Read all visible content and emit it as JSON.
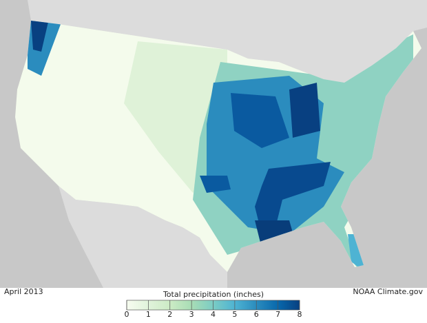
{
  "map": {
    "date": "April 2013",
    "credit": "NOAA Climate.gov",
    "legend": {
      "title": "Total precipitation (inches)",
      "range": [
        0,
        8
      ],
      "ticks": [
        0,
        1,
        2,
        3,
        4,
        5,
        6,
        7,
        8
      ],
      "colors": [
        "#f7fcf0",
        "#e0f3db",
        "#ccebc5",
        "#a8ddb5",
        "#7bccc4",
        "#4eb3d3",
        "#2b8cbe",
        "#0868ac",
        "#084081"
      ]
    }
  }
}
